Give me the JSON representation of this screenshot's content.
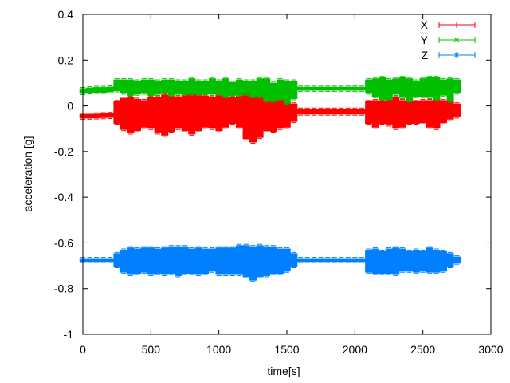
{
  "chart_data": {
    "type": "line",
    "style": "errorbars",
    "title": "",
    "xlabel": "time[s]",
    "ylabel": "acceleration [g]",
    "xlim": [
      0,
      3000
    ],
    "ylim": [
      -1,
      0.4
    ],
    "xticks": [
      "0",
      "500",
      "1000",
      "1500",
      "2000",
      "2500",
      "3000"
    ],
    "yticks": [
      "0.4",
      "0.2",
      "0",
      "-0.2",
      "-0.4",
      "-0.6",
      "-0.8",
      "-1"
    ],
    "grid": false,
    "legend": "top-right",
    "x": [
      0,
      50,
      100,
      150,
      200,
      250,
      300,
      350,
      400,
      450,
      500,
      550,
      600,
      650,
      700,
      750,
      800,
      850,
      900,
      950,
      1000,
      1050,
      1100,
      1150,
      1200,
      1250,
      1300,
      1350,
      1400,
      1450,
      1500,
      1550,
      1600,
      1650,
      1700,
      1750,
      1800,
      1850,
      1900,
      1950,
      2000,
      2050,
      2100,
      2150,
      2200,
      2250,
      2300,
      2350,
      2400,
      2450,
      2500,
      2550,
      2600,
      2650,
      2700,
      2750
    ],
    "series": [
      {
        "name": "X",
        "color": "#ff0000",
        "marker": "plus",
        "values": [
          -0.045,
          -0.045,
          -0.044,
          -0.043,
          -0.042,
          -0.03,
          -0.035,
          -0.04,
          -0.04,
          -0.035,
          -0.03,
          -0.04,
          -0.04,
          -0.035,
          -0.03,
          -0.03,
          -0.035,
          -0.03,
          -0.025,
          -0.03,
          -0.03,
          -0.025,
          -0.02,
          -0.025,
          -0.045,
          -0.05,
          -0.04,
          -0.03,
          -0.025,
          -0.03,
          -0.035,
          -0.03,
          -0.025,
          -0.025,
          -0.025,
          -0.025,
          -0.025,
          -0.025,
          -0.025,
          -0.025,
          -0.025,
          -0.025,
          -0.03,
          -0.035,
          -0.03,
          -0.025,
          -0.03,
          -0.035,
          -0.03,
          -0.03,
          -0.025,
          -0.035,
          -0.03,
          -0.025,
          -0.02,
          -0.02
        ],
        "errors": [
          0.01,
          0.01,
          0.01,
          0.01,
          0.01,
          0.05,
          0.07,
          0.08,
          0.07,
          0.06,
          0.07,
          0.08,
          0.09,
          0.08,
          0.07,
          0.08,
          0.09,
          0.08,
          0.07,
          0.07,
          0.08,
          0.07,
          0.06,
          0.07,
          0.1,
          0.11,
          0.1,
          0.08,
          0.09,
          0.07,
          0.06,
          0.04,
          0.012,
          0.012,
          0.012,
          0.012,
          0.012,
          0.012,
          0.012,
          0.012,
          0.012,
          0.012,
          0.05,
          0.06,
          0.05,
          0.06,
          0.07,
          0.06,
          0.05,
          0.05,
          0.05,
          0.06,
          0.07,
          0.05,
          0.04,
          0.03
        ]
      },
      {
        "name": "Y",
        "color": "#00c000",
        "marker": "cross",
        "values": [
          0.065,
          0.068,
          0.07,
          0.07,
          0.072,
          0.09,
          0.085,
          0.08,
          0.08,
          0.085,
          0.08,
          0.08,
          0.085,
          0.08,
          0.08,
          0.08,
          0.085,
          0.08,
          0.08,
          0.085,
          0.08,
          0.08,
          0.075,
          0.08,
          0.08,
          0.075,
          0.08,
          0.07,
          0.06,
          0.07,
          0.06,
          0.07,
          0.075,
          0.075,
          0.075,
          0.075,
          0.075,
          0.075,
          0.075,
          0.075,
          0.075,
          0.075,
          0.085,
          0.08,
          0.075,
          0.07,
          0.085,
          0.08,
          0.07,
          0.075,
          0.08,
          0.08,
          0.075,
          0.08,
          0.07,
          0.085
        ],
        "errors": [
          0.012,
          0.012,
          0.012,
          0.012,
          0.012,
          0.025,
          0.03,
          0.035,
          0.03,
          0.03,
          0.035,
          0.03,
          0.03,
          0.035,
          0.03,
          0.03,
          0.035,
          0.03,
          0.03,
          0.035,
          0.03,
          0.04,
          0.03,
          0.035,
          0.03,
          0.035,
          0.04,
          0.05,
          0.04,
          0.045,
          0.05,
          0.04,
          0.008,
          0.008,
          0.008,
          0.008,
          0.008,
          0.008,
          0.008,
          0.008,
          0.008,
          0.008,
          0.03,
          0.04,
          0.05,
          0.045,
          0.035,
          0.045,
          0.05,
          0.035,
          0.04,
          0.045,
          0.05,
          0.035,
          0.05,
          0.03
        ]
      },
      {
        "name": "Z",
        "color": "#0080ff",
        "marker": "star",
        "values": [
          -0.675,
          -0.675,
          -0.675,
          -0.675,
          -0.675,
          -0.675,
          -0.68,
          -0.68,
          -0.68,
          -0.675,
          -0.68,
          -0.68,
          -0.68,
          -0.675,
          -0.68,
          -0.675,
          -0.68,
          -0.68,
          -0.68,
          -0.675,
          -0.68,
          -0.68,
          -0.68,
          -0.675,
          -0.68,
          -0.69,
          -0.68,
          -0.68,
          -0.675,
          -0.68,
          -0.675,
          -0.675,
          -0.675,
          -0.675,
          -0.675,
          -0.675,
          -0.675,
          -0.675,
          -0.675,
          -0.675,
          -0.675,
          -0.675,
          -0.68,
          -0.68,
          -0.685,
          -0.68,
          -0.68,
          -0.675,
          -0.68,
          -0.68,
          -0.68,
          -0.675,
          -0.68,
          -0.68,
          -0.675,
          -0.675
        ],
        "errors": [
          0.008,
          0.008,
          0.008,
          0.008,
          0.008,
          0.03,
          0.05,
          0.06,
          0.055,
          0.055,
          0.06,
          0.055,
          0.06,
          0.06,
          0.065,
          0.06,
          0.055,
          0.06,
          0.055,
          0.05,
          0.06,
          0.06,
          0.06,
          0.065,
          0.07,
          0.075,
          0.07,
          0.065,
          0.06,
          0.055,
          0.05,
          0.03,
          0.008,
          0.008,
          0.008,
          0.008,
          0.008,
          0.008,
          0.008,
          0.008,
          0.008,
          0.008,
          0.05,
          0.055,
          0.05,
          0.055,
          0.06,
          0.05,
          0.045,
          0.05,
          0.045,
          0.055,
          0.05,
          0.045,
          0.03,
          0.015
        ]
      }
    ]
  }
}
